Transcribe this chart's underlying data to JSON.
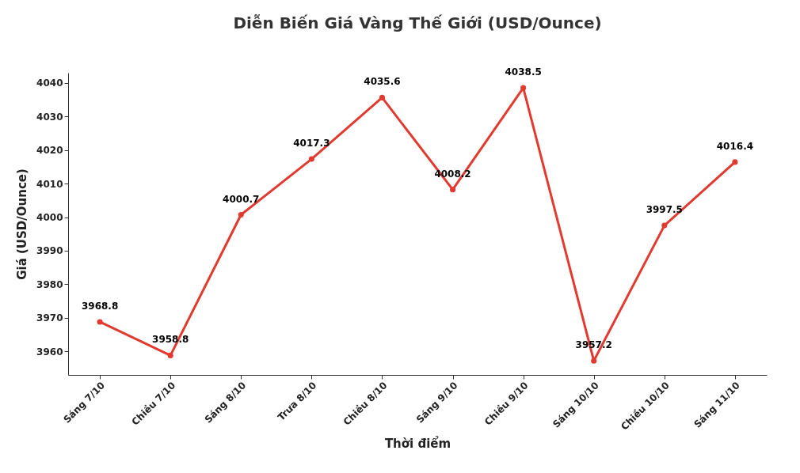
{
  "chart_data": {
    "type": "line",
    "title": "Diễn Biến Giá Vàng Thế Giới (USD/Ounce)",
    "xlabel": "Thời điểm",
    "ylabel": "Giá (USD/Ounce)",
    "categories": [
      "Sáng 7/10",
      "Chiều 7/10",
      "Sáng 8/10",
      "Trưa 8/10",
      "Chiều 8/10",
      "Sáng 9/10",
      "Chiều 9/10",
      "Sáng 10/10",
      "Chiều 10/10",
      "Sáng 11/10"
    ],
    "series": [
      {
        "color": "#e23a2e",
        "values": [
          3968.8,
          3958.8,
          4000.7,
          4017.3,
          4035.6,
          4008.2,
          4038.5,
          3957.2,
          3997.5,
          4016.4
        ]
      }
    ],
    "ylim": [
      3953,
      4043
    ],
    "yticks": [
      3960,
      3970,
      3980,
      3990,
      4000,
      4010,
      4020,
      4030,
      4040
    ],
    "data_labels": true,
    "marker": "circle",
    "line_style": "solid",
    "grid": false
  }
}
